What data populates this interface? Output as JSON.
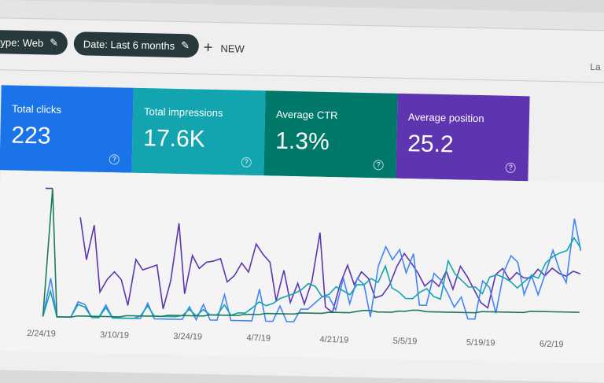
{
  "filters": [
    {
      "label": "type: Web"
    },
    {
      "label": "Date: Last 6 months"
    }
  ],
  "new_label": "NEW",
  "truncated_right": "La",
  "cards": [
    {
      "label": "Total clicks",
      "value": "223",
      "color": "#1a73e8"
    },
    {
      "label": "Total impressions",
      "value": "17.6K",
      "color": "#12a4af"
    },
    {
      "label": "Average CTR",
      "value": "1.3%",
      "color": "#00796b"
    },
    {
      "label": "Average position",
      "value": "25.2",
      "color": "#5e35b1"
    }
  ],
  "chart_data": {
    "type": "line",
    "x_ticks": [
      "2/24/19",
      "3/10/19",
      "3/24/19",
      "4/7/19",
      "4/21/19",
      "5/5/19",
      "5/19/19",
      "6/2/19"
    ],
    "grid": false,
    "series": [
      {
        "color": "#5e35b1",
        "values": [
          100,
          100,
          null,
          null,
          null,
          78,
          45,
          72,
          20,
          30,
          36,
          30,
          10,
          46,
          38,
          40,
          42,
          8,
          30,
          75,
          20,
          50,
          40,
          45,
          46,
          48,
          30,
          35,
          45,
          38,
          60,
          52,
          46,
          16,
          40,
          15,
          30,
          14,
          32,
          70,
          12,
          8,
          30,
          45,
          30,
          40,
          35,
          20,
          22,
          30,
          45,
          55,
          48,
          40,
          30,
          35,
          30,
          42,
          28,
          46,
          38,
          28,
          18,
          14,
          40,
          45,
          36,
          42,
          38,
          38,
          45,
          40,
          46,
          42,
          40,
          44,
          42
        ]
      },
      {
        "color": "#4285f4",
        "values": [
          0,
          30,
          0,
          0,
          0,
          12,
          10,
          0,
          0,
          10,
          0,
          0,
          0,
          0,
          0,
          12,
          0,
          0,
          0,
          0,
          0,
          10,
          0,
          12,
          0,
          0,
          20,
          0,
          0,
          0,
          0,
          25,
          0,
          0,
          12,
          0,
          0,
          10,
          10,
          15,
          20,
          20,
          10,
          35,
          15,
          35,
          30,
          5,
          45,
          60,
          50,
          58,
          40,
          55,
          15,
          15,
          40,
          35,
          25,
          14,
          22,
          5,
          5,
          35,
          30,
          10,
          42,
          55,
          50,
          25,
          40,
          25,
          42,
          60,
          45,
          35,
          85,
          60
        ]
      },
      {
        "color": "#12a4af",
        "values": [
          0,
          20,
          0,
          0,
          0,
          10,
          8,
          0,
          0,
          8,
          0,
          0,
          0,
          0,
          2,
          10,
          2,
          2,
          2,
          2,
          3,
          8,
          3,
          8,
          4,
          4,
          12,
          4,
          6,
          6,
          10,
          15,
          12,
          14,
          18,
          20,
          22,
          25,
          30,
          28,
          20,
          22,
          28,
          25,
          22,
          30,
          30,
          35,
          32,
          45,
          28,
          25,
          20,
          20,
          25,
          28,
          22,
          20,
          50,
          40,
          35,
          30,
          30,
          25,
          38,
          40,
          38,
          35,
          30,
          35,
          40,
          38,
          50,
          55,
          58,
          60,
          70,
          62
        ]
      },
      {
        "color": "#1e7a5a",
        "values": [
          0,
          100,
          0,
          0,
          0,
          1,
          1,
          1,
          1,
          1,
          1,
          1,
          2,
          2,
          2,
          2,
          2,
          2,
          3,
          3,
          3,
          3,
          3,
          3,
          4,
          4,
          4,
          4,
          4,
          5,
          5,
          5,
          6,
          6,
          6,
          6,
          6,
          7,
          7,
          7,
          7,
          8,
          8,
          8,
          8,
          9,
          10,
          10,
          9,
          9,
          9,
          10,
          10,
          11,
          11,
          10,
          10,
          10,
          10,
          10,
          10,
          10,
          10,
          11,
          11,
          11,
          11,
          11,
          11,
          11,
          12,
          12,
          12,
          12,
          12,
          12,
          12,
          12
        ]
      }
    ]
  }
}
